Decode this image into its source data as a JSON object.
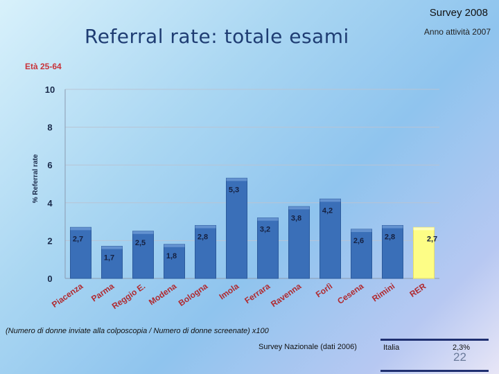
{
  "header": {
    "survey": "Survey 2008",
    "year_note": "Anno attività 2007",
    "title": "Referral rate: totale esami",
    "age_group": "Età 25-64"
  },
  "chart_data": {
    "type": "bar",
    "ylabel": "% Referral rate",
    "ylim": [
      0,
      10
    ],
    "yticks": [
      "0",
      "2",
      "4",
      "6",
      "8",
      "10"
    ],
    "grid": true,
    "categories": [
      "Piacenza",
      "Parma",
      "Reggio E.",
      "Modena",
      "Bologna",
      "Imola",
      "Ferrara",
      "Ravenna",
      "Forlì",
      "Cesena",
      "Rimini",
      "RER"
    ],
    "values": [
      2.7,
      1.7,
      2.5,
      1.8,
      2.8,
      5.3,
      3.2,
      3.8,
      4.2,
      2.6,
      2.8,
      2.7
    ],
    "value_labels": [
      "2,7",
      "1,7",
      "2,5",
      "1,8",
      "2,8",
      "5,3",
      "3,2",
      "3,8",
      "4,2",
      "2,6",
      "2,8",
      "2,7"
    ],
    "bar_color": "#3a6fb8",
    "highlight_color": "#fdfd86",
    "highlight_index": 11
  },
  "footnote": "(Numero di donne inviate alla colposcopia / Numero di donne screenate) x100",
  "reference": {
    "source": "Survey Nazionale (dati 2006)",
    "country": "Italia",
    "value": "2,3%"
  },
  "page_number": "22"
}
